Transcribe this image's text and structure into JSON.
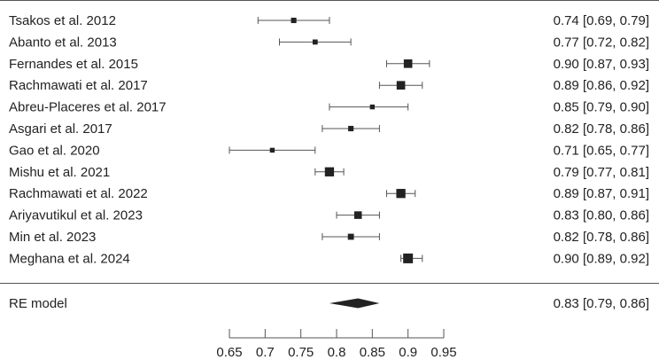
{
  "chart_data": {
    "type": "forest",
    "studies": [
      {
        "label": "Tsakos et al. 2012",
        "estimate": 0.74,
        "lower": 0.69,
        "upper": 0.79,
        "ci_text": "0.74 [0.69, 0.79]",
        "weight": 0.3
      },
      {
        "label": "Abanto et al. 2013",
        "estimate": 0.77,
        "lower": 0.72,
        "upper": 0.82,
        "ci_text": "0.77 [0.72, 0.82]",
        "weight": 0.25
      },
      {
        "label": "Fernandes et al. 2015",
        "estimate": 0.9,
        "lower": 0.87,
        "upper": 0.93,
        "ci_text": "0.90 [0.87, 0.93]",
        "weight": 0.8
      },
      {
        "label": "Rachmawati et al. 2017",
        "estimate": 0.89,
        "lower": 0.86,
        "upper": 0.92,
        "ci_text": "0.89 [0.86, 0.92]",
        "weight": 0.8
      },
      {
        "label": "Abreu-Placeres et al. 2017",
        "estimate": 0.85,
        "lower": 0.79,
        "upper": 0.9,
        "ci_text": "0.85 [0.79, 0.90]",
        "weight": 0.2
      },
      {
        "label": "Asgari et al. 2017",
        "estimate": 0.82,
        "lower": 0.78,
        "upper": 0.86,
        "ci_text": "0.82 [0.78, 0.86]",
        "weight": 0.3
      },
      {
        "label": "Gao et al. 2020",
        "estimate": 0.71,
        "lower": 0.65,
        "upper": 0.77,
        "ci_text": "0.71 [0.65, 0.77]",
        "weight": 0.2
      },
      {
        "label": "Mishu et al. 2021",
        "estimate": 0.79,
        "lower": 0.77,
        "upper": 0.81,
        "ci_text": "0.79 [0.77, 0.81]",
        "weight": 0.9
      },
      {
        "label": "Rachmawati et al. 2022",
        "estimate": 0.89,
        "lower": 0.87,
        "upper": 0.91,
        "ci_text": "0.89 [0.87, 0.91]",
        "weight": 0.9
      },
      {
        "label": "Ariyavutikul et al. 2023",
        "estimate": 0.83,
        "lower": 0.8,
        "upper": 0.86,
        "ci_text": "0.83 [0.80, 0.86]",
        "weight": 0.65
      },
      {
        "label": "Min et al. 2023",
        "estimate": 0.82,
        "lower": 0.78,
        "upper": 0.86,
        "ci_text": "0.82 [0.78, 0.86]",
        "weight": 0.4
      },
      {
        "label": "Meghana et al. 2024",
        "estimate": 0.9,
        "lower": 0.89,
        "upper": 0.92,
        "ci_text": "0.90 [0.89, 0.92]",
        "weight": 1.0
      }
    ],
    "summary": {
      "label": "RE model",
      "estimate": 0.83,
      "lower": 0.79,
      "upper": 0.86,
      "ci_text": "0.83 [0.79, 0.86]"
    },
    "xlim": [
      0.65,
      0.95
    ],
    "xticks": [
      0.65,
      0.7,
      0.75,
      0.8,
      0.85,
      0.9,
      0.95
    ],
    "xtick_labels": [
      "0.65",
      "0.7",
      "0.75",
      "0.8",
      "0.85",
      "0.9",
      "0.95"
    ],
    "title": "",
    "xlabel": "",
    "grid": false,
    "colors": {
      "marker": "#222222",
      "text": "#222222",
      "line": "#555555"
    }
  }
}
